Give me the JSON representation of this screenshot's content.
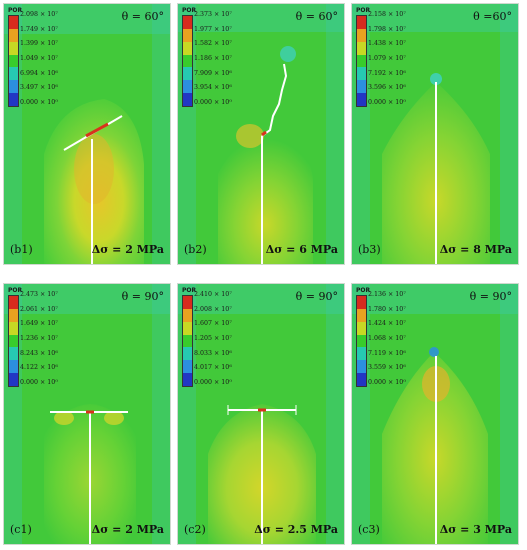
{
  "legend_title": "POR",
  "legend_colors": [
    "#d72b1e",
    "#e8a220",
    "#c7d824",
    "#38cc2c",
    "#26c9b2",
    "#2c8fe0",
    "#2236c4"
  ],
  "panels": [
    {
      "label": "(b1)",
      "angle": "θ = 60°",
      "stress": "Δσ = 2 MPa",
      "ticks": [
        "2.098 × 10⁷",
        "1.749 × 10⁷",
        "1.399 × 10⁷",
        "1.049 × 10⁷",
        "6.994 × 10⁶",
        "3.497 × 10⁶",
        "0.000 × 10⁰"
      ]
    },
    {
      "label": "(b2)",
      "angle": "θ = 60°",
      "stress": "Δσ = 6 MPa",
      "ticks": [
        "2.373 × 10⁷",
        "1.977 × 10⁷",
        "1.582 × 10⁷",
        "1.186 × 10⁷",
        "7.909 × 10⁶",
        "3.954 × 10⁶",
        "0.000 × 10⁰"
      ]
    },
    {
      "label": "(b3)",
      "angle": "θ =60°",
      "stress": "Δσ = 8 MPa",
      "ticks": [
        "2.158 × 10⁷",
        "1.798 × 10⁷",
        "1.438 × 10⁷",
        "1.079 × 10⁷",
        "7.192 × 10⁶",
        "3.596 × 10⁶",
        "0.000 × 10⁰"
      ]
    },
    {
      "label": "(c1)",
      "angle": "θ = 90°",
      "stress": "Δσ = 2 MPa",
      "ticks": [
        "2.473 × 10⁷",
        "2.061 × 10⁷",
        "1.649 × 10⁷",
        "1.236 × 10⁷",
        "8.243 × 10⁶",
        "4.122 × 10⁶",
        "0.000 × 10⁰"
      ]
    },
    {
      "label": "(c2)",
      "angle": "θ = 90°",
      "stress": "Δσ = 2.5 MPa",
      "ticks": [
        "2.410 × 10⁷",
        "2.008 × 10⁷",
        "1.607 × 10⁷",
        "1.205 × 10⁷",
        "8.033 × 10⁶",
        "4.017 × 10⁶",
        "0.000 × 10⁰"
      ]
    },
    {
      "label": "(c3)",
      "angle": "θ = 90°",
      "stress": "Δσ = 3 MPa",
      "ticks": [
        "2.136 × 10⁷",
        "1.780 × 10⁷",
        "1.424 × 10⁷",
        "1.068 × 10⁷",
        "7.119 × 10⁶",
        "3.559 × 10⁶",
        "0.000 × 10⁰"
      ]
    }
  ]
}
